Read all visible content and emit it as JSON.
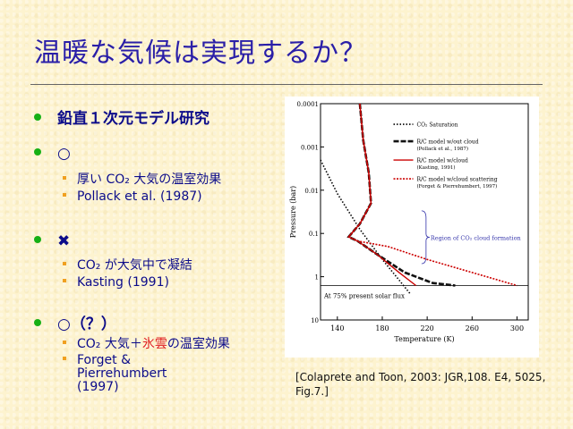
{
  "title": "温暖な気候は実現するか？",
  "sections": [
    {
      "marker": "鉛直１次元モデル研究",
      "items": []
    },
    {
      "marker": "○",
      "items": [
        "厚い CO₂ 大気の温室効果",
        "Pollack et al. (1987)"
      ]
    },
    {
      "marker": "✖",
      "items": [
        "CO₂ が大気中で凝結",
        "Kasting (1991)"
      ]
    },
    {
      "marker": "○（？）",
      "items": [
        "CO₂ 大気＋氷雲の温室効果",
        "Forget & Pierrehumbert (1997)"
      ]
    }
  ],
  "caption": "[Colaprete and Toon, 2003: JGR,108. E4, 5025, Fig.7.]",
  "colors": {
    "title": "#2A1FA8",
    "text": "#0C0C8A",
    "bullet": "#16B016",
    "subbullet": "#F0A020",
    "highlight": "#E02020"
  },
  "chart_data": {
    "type": "line",
    "xlabel": "Temperature (K)",
    "ylabel": "Pressure (bar)",
    "x_ticks": [
      "140",
      "180",
      "220",
      "260",
      "300"
    ],
    "y_ticks": [
      "0.0001",
      "0.001",
      "0.01",
      "0.1",
      "1",
      "10"
    ],
    "xlim": [
      125,
      310
    ],
    "ylim": [
      0.0001,
      10
    ],
    "y_scale": "log-inverted",
    "annotation_region": "Region of CO₂ cloud formation",
    "annotation_flux": "At 75% present solar flux",
    "legend": [
      {
        "label": "CO₂ Saturation",
        "style": "dotted",
        "color": "#000000"
      },
      {
        "label": "R/C model w/out cloud",
        "sublabel": "(Pollack et al., 1987)",
        "style": "dashed-thick",
        "color": "#000000"
      },
      {
        "label": "R/C model w/cloud",
        "sublabel": "(Kasting, 1991)",
        "style": "solid",
        "color": "#CC0000"
      },
      {
        "label": "R/C model w/cloud scattering",
        "sublabel": "(Forget & Pierrehumbert, 1997)",
        "style": "dotted",
        "color": "#CC0000"
      }
    ],
    "series": [
      {
        "key": "saturation",
        "points": [
          [
            125,
            0.002
          ],
          [
            140,
            0.012
          ],
          [
            160,
            0.08
          ],
          [
            180,
            0.4
          ],
          [
            195,
            1.2
          ],
          [
            205,
            2.5
          ]
        ]
      },
      {
        "key": "pollack",
        "points": [
          [
            160,
            0.0001
          ],
          [
            163,
            0.0007
          ],
          [
            168,
            0.004
          ],
          [
            170,
            0.02
          ],
          [
            160,
            0.06
          ],
          [
            150,
            0.12
          ],
          [
            158,
            0.15
          ],
          [
            175,
            0.3
          ],
          [
            200,
            0.8
          ],
          [
            225,
            1.4
          ],
          [
            245,
            1.6
          ]
        ]
      },
      {
        "key": "kasting",
        "points": [
          [
            160,
            0.0001
          ],
          [
            163,
            0.0007
          ],
          [
            168,
            0.004
          ],
          [
            170,
            0.02
          ],
          [
            160,
            0.06
          ],
          [
            150,
            0.12
          ],
          [
            158,
            0.15
          ],
          [
            175,
            0.3
          ],
          [
            195,
            0.8
          ],
          [
            210,
            1.6
          ]
        ]
      },
      {
        "key": "forget",
        "points": [
          [
            160,
            0.0001
          ],
          [
            163,
            0.0007
          ],
          [
            168,
            0.004
          ],
          [
            170,
            0.02
          ],
          [
            160,
            0.06
          ],
          [
            150,
            0.12
          ],
          [
            158,
            0.15
          ],
          [
            185,
            0.2
          ],
          [
            220,
            0.4
          ],
          [
            260,
            0.8
          ],
          [
            300,
            1.6
          ]
        ]
      }
    ]
  }
}
